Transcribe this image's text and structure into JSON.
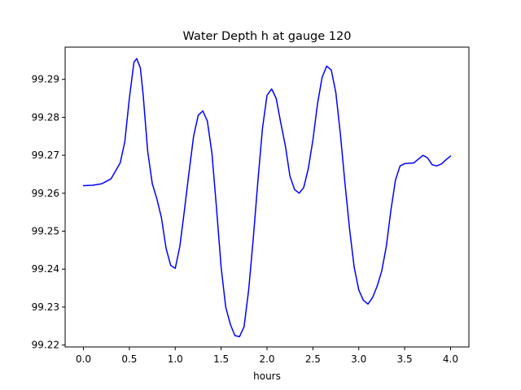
{
  "chart_data": {
    "type": "line",
    "title": "Water Depth h at gauge 120",
    "xlabel": "hours",
    "ylabel": "",
    "xlim": [
      -0.2,
      4.2
    ],
    "ylim": [
      99.2195,
      99.2985
    ],
    "grid": false,
    "xticks": [
      0.0,
      0.5,
      1.0,
      1.5,
      2.0,
      2.5,
      3.0,
      3.5,
      4.0
    ],
    "xtick_labels": [
      "0.0",
      "0.5",
      "1.0",
      "1.5",
      "2.0",
      "2.5",
      "3.0",
      "3.5",
      "4.0"
    ],
    "yticks": [
      99.22,
      99.23,
      99.24,
      99.25,
      99.26,
      99.27,
      99.28,
      99.29
    ],
    "ytick_labels": [
      "99.22",
      "99.23",
      "99.24",
      "99.25",
      "99.26",
      "99.27",
      "99.28",
      "99.29"
    ],
    "series": [
      {
        "color": "#0000ff",
        "points": [
          [
            0.0,
            99.262
          ],
          [
            0.1,
            99.2621
          ],
          [
            0.2,
            99.2625
          ],
          [
            0.3,
            99.2638
          ],
          [
            0.4,
            99.268
          ],
          [
            0.45,
            99.2735
          ],
          [
            0.5,
            99.285
          ],
          [
            0.55,
            99.2945
          ],
          [
            0.58,
            99.2955
          ],
          [
            0.62,
            99.293
          ],
          [
            0.65,
            99.286
          ],
          [
            0.7,
            99.271
          ],
          [
            0.75,
            99.2625
          ],
          [
            0.8,
            99.2585
          ],
          [
            0.85,
            99.2535
          ],
          [
            0.9,
            99.2455
          ],
          [
            0.95,
            99.241
          ],
          [
            1.0,
            99.2402
          ],
          [
            1.05,
            99.246
          ],
          [
            1.1,
            99.2555
          ],
          [
            1.15,
            99.2655
          ],
          [
            1.2,
            99.275
          ],
          [
            1.25,
            99.2805
          ],
          [
            1.3,
            99.2817
          ],
          [
            1.35,
            99.279
          ],
          [
            1.4,
            99.2705
          ],
          [
            1.45,
            99.256
          ],
          [
            1.5,
            99.2405
          ],
          [
            1.55,
            99.23
          ],
          [
            1.6,
            99.2255
          ],
          [
            1.65,
            99.2225
          ],
          [
            1.7,
            99.2222
          ],
          [
            1.75,
            99.2248
          ],
          [
            1.8,
            99.2345
          ],
          [
            1.85,
            99.248
          ],
          [
            1.9,
            99.263
          ],
          [
            1.95,
            99.277
          ],
          [
            2.0,
            99.2858
          ],
          [
            2.05,
            99.2875
          ],
          [
            2.1,
            99.285
          ],
          [
            2.15,
            99.2785
          ],
          [
            2.2,
            99.2725
          ],
          [
            2.25,
            99.2645
          ],
          [
            2.3,
            99.261
          ],
          [
            2.35,
            99.26
          ],
          [
            2.4,
            99.2615
          ],
          [
            2.45,
            99.2665
          ],
          [
            2.5,
            99.274
          ],
          [
            2.55,
            99.2835
          ],
          [
            2.6,
            99.2905
          ],
          [
            2.65,
            99.2935
          ],
          [
            2.7,
            99.2925
          ],
          [
            2.75,
            99.2865
          ],
          [
            2.8,
            99.2755
          ],
          [
            2.85,
            99.2625
          ],
          [
            2.9,
            99.2505
          ],
          [
            2.95,
            99.2405
          ],
          [
            3.0,
            99.2345
          ],
          [
            3.05,
            99.2318
          ],
          [
            3.1,
            99.2308
          ],
          [
            3.15,
            99.2325
          ],
          [
            3.2,
            99.2355
          ],
          [
            3.25,
            99.2395
          ],
          [
            3.3,
            99.246
          ],
          [
            3.35,
            99.2555
          ],
          [
            3.4,
            99.2635
          ],
          [
            3.45,
            99.2672
          ],
          [
            3.5,
            99.2678
          ],
          [
            3.6,
            99.268
          ],
          [
            3.65,
            99.269
          ],
          [
            3.7,
            99.27
          ],
          [
            3.75,
            99.2693
          ],
          [
            3.8,
            99.2675
          ],
          [
            3.85,
            99.2672
          ],
          [
            3.9,
            99.2677
          ],
          [
            3.95,
            99.2688
          ],
          [
            4.0,
            99.2698
          ]
        ]
      }
    ]
  }
}
